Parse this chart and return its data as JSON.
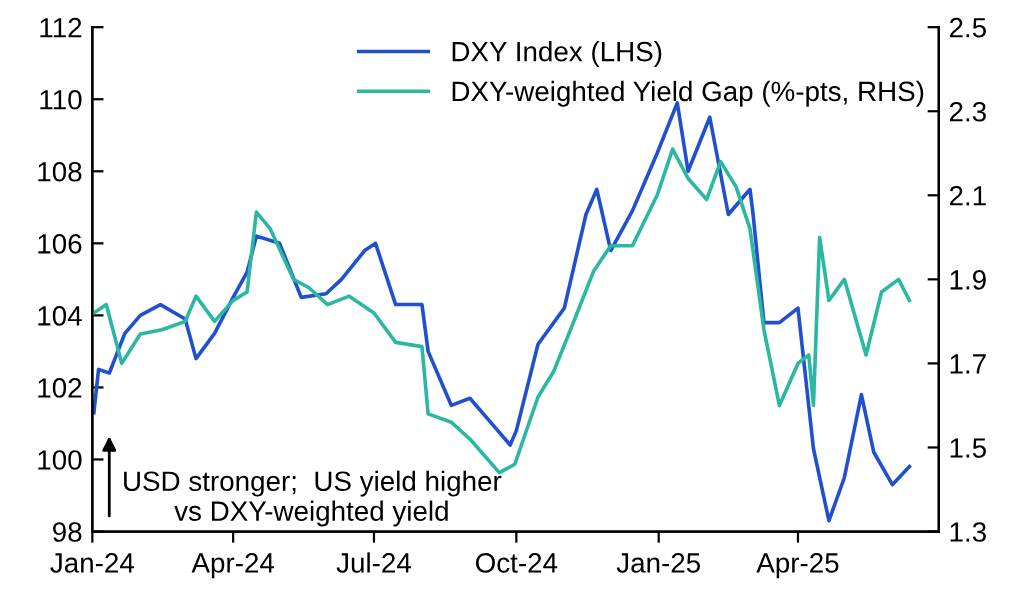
{
  "chart_data": {
    "type": "line",
    "series": [
      {
        "name": "DXY Index (LHS)",
        "color": "#2050d0",
        "axis": "y",
        "x": [
          "2024-01-02",
          "2024-01-05",
          "2024-01-12",
          "2024-01-22",
          "2024-02-01",
          "2024-02-14",
          "2024-03-01",
          "2024-03-08",
          "2024-03-20",
          "2024-04-01",
          "2024-04-10",
          "2024-04-16",
          "2024-05-01",
          "2024-05-15",
          "2024-05-31",
          "2024-06-10",
          "2024-06-25",
          "2024-07-02",
          "2024-07-15",
          "2024-08-01",
          "2024-08-05",
          "2024-08-20",
          "2024-09-01",
          "2024-09-15",
          "2024-09-27",
          "2024-10-01",
          "2024-10-15",
          "2024-11-01",
          "2024-11-15",
          "2024-11-22",
          "2024-12-01",
          "2024-12-15",
          "2024-12-31",
          "2025-01-13",
          "2025-01-20",
          "2025-02-03",
          "2025-02-15",
          "2025-03-01",
          "2025-03-03",
          "2025-03-10",
          "2025-03-20",
          "2025-04-01",
          "2025-04-11",
          "2025-04-21",
          "2025-05-01",
          "2025-05-12",
          "2025-05-20",
          "2025-06-01",
          "2025-06-12"
        ],
        "values": [
          101.3,
          102.5,
          102.4,
          103.5,
          104.0,
          104.3,
          103.9,
          102.8,
          103.5,
          104.5,
          105.2,
          106.2,
          106.0,
          104.5,
          104.6,
          105.0,
          105.8,
          106.0,
          104.3,
          104.3,
          103.0,
          101.5,
          101.7,
          101.0,
          100.4,
          100.8,
          103.2,
          104.2,
          106.8,
          107.5,
          105.8,
          106.9,
          108.5,
          109.9,
          108.0,
          109.5,
          106.8,
          107.5,
          106.8,
          103.8,
          103.8,
          104.2,
          100.3,
          98.3,
          99.5,
          101.8,
          100.2,
          99.3,
          99.8
        ]
      },
      {
        "name": "DXY-weighted Yield Gap (%-pts, RHS)",
        "color": "#2ab8a0",
        "axis": "y2",
        "x": [
          "2024-01-02",
          "2024-01-10",
          "2024-01-20",
          "2024-02-01",
          "2024-02-15",
          "2024-03-01",
          "2024-03-08",
          "2024-03-20",
          "2024-04-01",
          "2024-04-10",
          "2024-04-16",
          "2024-04-25",
          "2024-05-10",
          "2024-05-20",
          "2024-06-01",
          "2024-06-15",
          "2024-07-01",
          "2024-07-15",
          "2024-08-01",
          "2024-08-05",
          "2024-08-20",
          "2024-09-01",
          "2024-09-20",
          "2024-09-30",
          "2024-10-15",
          "2024-10-25",
          "2024-11-05",
          "2024-11-20",
          "2024-12-01",
          "2024-12-15",
          "2024-12-31",
          "2025-01-10",
          "2025-01-20",
          "2025-02-01",
          "2025-02-10",
          "2025-02-20",
          "2025-03-01",
          "2025-03-10",
          "2025-03-20",
          "2025-04-01",
          "2025-04-08",
          "2025-04-11",
          "2025-04-15",
          "2025-04-21",
          "2025-05-01",
          "2025-05-15",
          "2025-05-25",
          "2025-06-05",
          "2025-06-12"
        ],
        "values": [
          1.82,
          1.84,
          1.7,
          1.77,
          1.78,
          1.8,
          1.86,
          1.8,
          1.85,
          1.87,
          2.06,
          2.02,
          1.9,
          1.88,
          1.84,
          1.86,
          1.82,
          1.75,
          1.74,
          1.58,
          1.56,
          1.52,
          1.44,
          1.46,
          1.62,
          1.68,
          1.78,
          1.92,
          1.98,
          1.98,
          2.1,
          2.21,
          2.14,
          2.09,
          2.18,
          2.12,
          2.02,
          1.78,
          1.6,
          1.7,
          1.72,
          1.6,
          2.0,
          1.85,
          1.9,
          1.72,
          1.87,
          1.9,
          1.85
        ]
      }
    ],
    "xlim": [
      "2024-01-01",
      "2025-07-01"
    ],
    "xticks": [
      {
        "value": "2024-01-01",
        "label": "Jan-24"
      },
      {
        "value": "2024-04-01",
        "label": "Apr-24"
      },
      {
        "value": "2024-07-01",
        "label": "Jul-24"
      },
      {
        "value": "2024-10-01",
        "label": "Oct-24"
      },
      {
        "value": "2025-01-01",
        "label": "Jan-25"
      },
      {
        "value": "2025-04-01",
        "label": "Apr-25"
      }
    ],
    "ylim": [
      98,
      112
    ],
    "yticks": [
      98,
      100,
      102,
      104,
      106,
      108,
      110,
      112
    ],
    "y2lim": [
      1.3,
      2.5
    ],
    "y2ticks": [
      1.3,
      1.5,
      1.7,
      1.9,
      2.1,
      2.3,
      2.5
    ],
    "annotations": [
      "USD stronger;  US yield higher\nvs DXY-weighted yield"
    ],
    "legend": "top right",
    "grid": false,
    "marker": "none",
    "line_style": "solid"
  }
}
